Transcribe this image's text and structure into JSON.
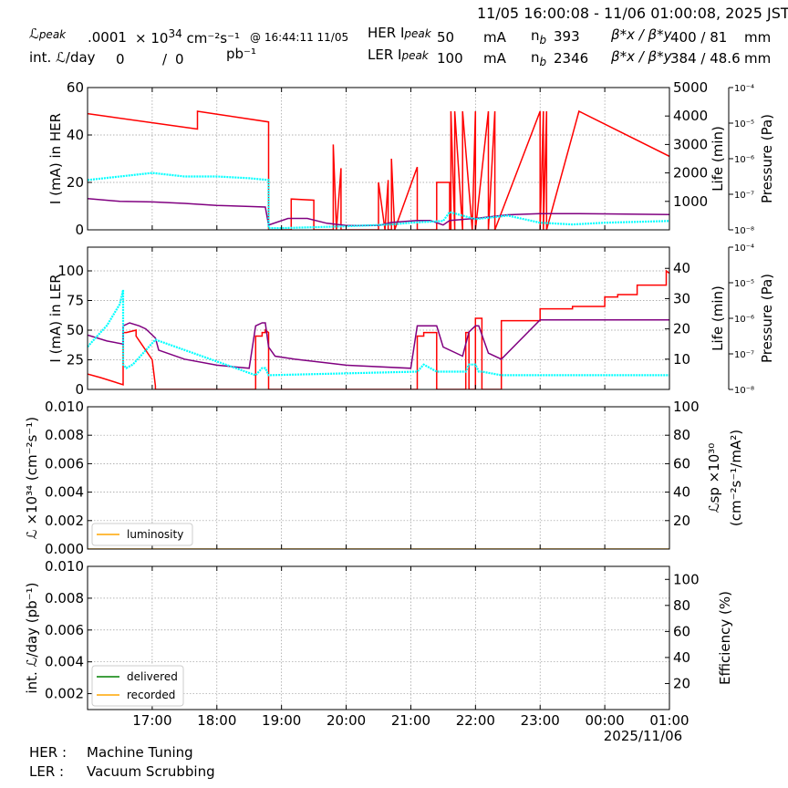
{
  "header": {
    "time_range": "11/05 16:00:08 - 11/06 01:00:08, 2025 JST",
    "lpeak_label": "ℒ",
    "lpeak_sub": "peak",
    "lpeak_value": ".0001",
    "lpeak_exp_mult": "× 10",
    "lpeak_exp": "34",
    "lpeak_unit": "cm⁻²s⁻¹",
    "lpeak_time": "@ 16:44:11 11/05",
    "int_label": "int. ℒ/day",
    "int_value1": "0",
    "int_sep": "/",
    "int_value2": "0",
    "int_unit": "pb⁻¹",
    "her_label": "HER I",
    "her_sub": "peak",
    "her_value": "50",
    "her_unit": "mA",
    "her_nb_label": "n",
    "her_nb_sub": "b",
    "her_nb_value": "393",
    "her_beta_label": "β*x / β*y",
    "her_beta_value": "400  / 81",
    "her_beta_unit": "mm",
    "ler_label": "LER I",
    "ler_sub": "peak",
    "ler_value": "100",
    "ler_unit": "mA",
    "ler_nb_label": "n",
    "ler_nb_sub": "b",
    "ler_nb_value": "2346",
    "ler_beta_label": "β*x / β*y",
    "ler_beta_value": "384  / 48.6",
    "ler_beta_unit": "mm"
  },
  "footer": {
    "her_label": "HER :",
    "her_status": "Machine Tuning",
    "ler_label": "LER :",
    "ler_status": "Vacuum Scrubbing"
  },
  "colors": {
    "current": "#ff0000",
    "life": "#800080",
    "pressure": "#00ffff",
    "luminosity": "#ffa500",
    "delivered": "#008000",
    "recorded": "#ffa500"
  },
  "chart_data": [
    {
      "id": "her",
      "type": "line",
      "ylabel": "I (mA) in HER",
      "ylabel_right": "Life (min)",
      "ylabel_right2": "Pressure (Pa)",
      "ylim": [
        0,
        60
      ],
      "yticks": [
        0,
        20,
        40,
        60
      ],
      "ylim_right": [
        0,
        5000
      ],
      "yticks_right": [
        1000,
        2000,
        3000,
        4000,
        5000
      ],
      "pressure_ticks": [
        "10⁻⁴",
        "10⁻⁵",
        "10⁻⁶",
        "10⁻⁷",
        "10⁻⁸"
      ],
      "series": [
        {
          "role": "current",
          "x": [
            0,
            1.7,
            1.7,
            2.8,
            2.8,
            3.15,
            3.15,
            3.5,
            3.5,
            3.8,
            3.8,
            3.85,
            3.85,
            3.92,
            3.92,
            4.5,
            4.5,
            4.6,
            4.6,
            4.65,
            4.65,
            4.7,
            4.7,
            4.75,
            5.1,
            5.1,
            5.4,
            5.4,
            5.6,
            5.6,
            5.62,
            5.62,
            5.68,
            5.68,
            5.8,
            5.8,
            5.95,
            6.0,
            6.0,
            6.2,
            6.2,
            6.3,
            6.3,
            7.0,
            7.0,
            7.05,
            7.05,
            7.1,
            7.1,
            7.6,
            7.6,
            9.0
          ],
          "y": [
            49,
            42.5,
            50,
            45.5,
            0,
            0,
            13,
            12.5,
            0,
            0,
            36,
            0,
            0,
            26,
            0,
            0,
            20,
            0,
            0,
            21,
            0,
            0,
            30,
            0,
            26.5,
            0,
            0,
            20,
            20,
            0,
            0,
            50,
            0,
            50,
            0,
            50,
            0,
            50,
            0,
            50,
            0,
            50,
            0,
            50,
            0,
            50,
            0,
            50,
            0,
            50,
            50,
            31
          ]
        },
        {
          "role": "life",
          "x": [
            0,
            0.5,
            1.0,
            1.5,
            2.0,
            2.5,
            2.75,
            2.8,
            3.1,
            3.4,
            3.7,
            4.0,
            4.5,
            4.7,
            5.1,
            5.3,
            5.5,
            5.6,
            6.0,
            6.5,
            7.0,
            7.5,
            8.0,
            9.0
          ],
          "y": [
            1100,
            1000,
            980,
            930,
            860,
            820,
            800,
            170,
            400,
            400,
            230,
            150,
            150,
            260,
            330,
            330,
            170,
            330,
            400,
            530,
            570,
            570,
            560,
            540
          ]
        },
        {
          "role": "pressure",
          "x": [
            0,
            0.5,
            1.0,
            1.5,
            2.0,
            2.5,
            2.8,
            2.8,
            3.0,
            4.0,
            4.7,
            5.0,
            5.5,
            5.6,
            6.0,
            6.5,
            7.0,
            7.5,
            8.0,
            9.0
          ],
          "y": [
            -6.6,
            -6.5,
            -6.4,
            -6.5,
            -6.5,
            -6.55,
            -6.6,
            -7.95,
            -7.95,
            -7.9,
            -7.85,
            -7.8,
            -7.75,
            -7.5,
            -7.7,
            -7.6,
            -7.8,
            -7.85,
            -7.8,
            -7.75
          ]
        }
      ]
    },
    {
      "id": "ler",
      "type": "line",
      "ylabel": "I (mA) in LER",
      "ylabel_right": "Life (min)",
      "ylabel_right2": "Pressure (Pa)",
      "ylim": [
        0,
        120
      ],
      "yticks": [
        0,
        25,
        50,
        75,
        100
      ],
      "ylim_right": [
        0,
        47
      ],
      "yticks_right": [
        10,
        20,
        30,
        40
      ],
      "pressure_ticks": [
        "10⁻⁴",
        "10⁻⁵",
        "10⁻⁶",
        "10⁻⁷",
        "10⁻⁸"
      ],
      "series": [
        {
          "role": "current",
          "x": [
            0,
            0.2,
            0.55,
            0.55,
            0.6,
            0.75,
            0.75,
            1.0,
            1.05,
            1.05,
            2.6,
            2.6,
            2.7,
            2.7,
            2.75,
            2.75,
            2.8,
            2.8,
            5.1,
            5.1,
            5.2,
            5.2,
            5.3,
            5.3,
            5.4,
            5.4,
            5.85,
            5.85,
            5.9,
            5.9,
            6.0,
            6.0,
            6.1,
            6.1,
            6.4,
            6.4,
            6.5,
            7.0,
            7.0,
            7.5,
            7.5,
            8.0,
            8.0,
            8.2,
            8.2,
            8.5,
            8.5,
            8.95,
            8.95,
            9.0
          ],
          "y": [
            13,
            10,
            4,
            48,
            48,
            50,
            45,
            25,
            3,
            0,
            0,
            45,
            45,
            48,
            48,
            50,
            48,
            0,
            0,
            45,
            45,
            48,
            48,
            48,
            48,
            0,
            0,
            48,
            48,
            0,
            0,
            60,
            60,
            0,
            0,
            58,
            58,
            58,
            68,
            68,
            70,
            70,
            78,
            78,
            80,
            80,
            88,
            88,
            100,
            98
          ]
        },
        {
          "role": "life",
          "x": [
            0,
            0.3,
            0.55,
            0.55,
            0.65,
            0.8,
            0.9,
            1.05,
            1.1,
            1.5,
            2.0,
            2.5,
            2.6,
            2.7,
            2.75,
            2.8,
            2.9,
            3.2,
            4.0,
            5.0,
            5.1,
            5.2,
            5.4,
            5.5,
            5.8,
            5.9,
            6.0,
            6.05,
            6.2,
            6.4,
            7.0,
            7.5,
            8.0,
            9.0
          ],
          "y": [
            18,
            16,
            15,
            21,
            22,
            21,
            20,
            17,
            13,
            10,
            8,
            7,
            21,
            22,
            22,
            14,
            11,
            10,
            8,
            7,
            21,
            21,
            21,
            14,
            11,
            19,
            21,
            21,
            12,
            10,
            23,
            23,
            23,
            23
          ]
        },
        {
          "role": "pressure",
          "x": [
            0,
            0.3,
            0.5,
            0.55,
            0.55,
            0.6,
            0.7,
            0.8,
            0.9,
            1.0,
            1.05,
            2.6,
            2.7,
            2.75,
            2.8,
            5.1,
            5.2,
            5.4,
            5.85,
            5.9,
            6.0,
            6.05,
            6.1,
            6.4,
            7.0,
            8.0,
            9.0
          ],
          "y": [
            -6.8,
            -6.2,
            -5.6,
            -5.2,
            -7.3,
            -7.4,
            -7.3,
            -7.1,
            -6.9,
            -6.7,
            -6.6,
            -7.6,
            -7.4,
            -7.4,
            -7.6,
            -7.5,
            -7.3,
            -7.5,
            -7.5,
            -7.3,
            -7.3,
            -7.5,
            -7.5,
            -7.6,
            -7.6,
            -7.6,
            -7.6
          ]
        }
      ]
    },
    {
      "id": "lumi",
      "type": "line",
      "ylabel": "ℒ ×10³⁴ (cm⁻²s⁻¹)",
      "ylabel_right": "ℒsp ×10³⁰",
      "ylabel_right2": "(cm⁻²s⁻¹/mA²)",
      "ylim": [
        0,
        0.01
      ],
      "yticks": [
        0.0,
        0.002,
        0.004,
        0.006,
        0.008,
        0.01
      ],
      "ylim_right": [
        0,
        100
      ],
      "yticks_right": [
        20,
        40,
        60,
        80,
        100
      ],
      "legend": [
        "luminosity"
      ],
      "series": [
        {
          "role": "luminosity",
          "name": "luminosity",
          "x": [
            0,
            9.0
          ],
          "y": [
            0,
            0
          ]
        }
      ]
    },
    {
      "id": "intlumi",
      "type": "line",
      "ylabel": "int. ℒ/day (pb⁻¹)",
      "ylabel_right": "Efficiency (%)",
      "ylim": [
        0.001,
        0.01
      ],
      "yticks": [
        0.002,
        0.004,
        0.006,
        0.008,
        0.01
      ],
      "ylim_right": [
        0,
        110
      ],
      "yticks_right": [
        20,
        40,
        60,
        80,
        100
      ],
      "legend": [
        "delivered",
        "recorded"
      ],
      "series": [
        {
          "role": "delivered",
          "name": "delivered",
          "x": [],
          "y": []
        },
        {
          "role": "recorded",
          "name": "recorded",
          "x": [],
          "y": []
        }
      ]
    }
  ],
  "xaxis": {
    "xlim": [
      0,
      9.0
    ],
    "tick_x": [
      1,
      2,
      3,
      4,
      5,
      6,
      7,
      8,
      9
    ],
    "tick_labels": [
      "17:00",
      "18:00",
      "19:00",
      "20:00",
      "21:00",
      "22:00",
      "23:00",
      "00:00",
      "01:00"
    ],
    "date_label": "2025/11/06"
  }
}
